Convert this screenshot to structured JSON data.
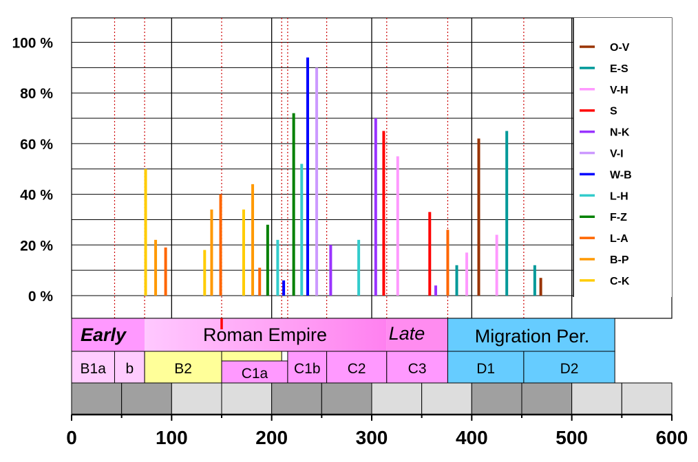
{
  "chart_data": {
    "type": "bar",
    "x_axis": {
      "min": 0,
      "max": 600,
      "ticks": [
        0,
        100,
        200,
        300,
        400,
        500,
        600
      ]
    },
    "y_axis": {
      "min": 0,
      "max": 100,
      "tick_labels": [
        "0 %",
        "20 %",
        "40  %",
        "60 %",
        "80 %",
        "100 %"
      ],
      "tick_values": [
        0,
        20,
        40,
        60,
        80,
        100
      ]
    },
    "grid": true,
    "legend_position": "right",
    "series": [
      {
        "name": "O-V",
        "color": "#993300",
        "points": [
          [
            407,
            62
          ],
          [
            469,
            7
          ]
        ]
      },
      {
        "name": "E-S",
        "color": "#009999",
        "points": [
          [
            385,
            12
          ],
          [
            435,
            65
          ],
          [
            463,
            12
          ]
        ]
      },
      {
        "name": "V-H",
        "color": "#ff99ff",
        "points": [
          [
            326,
            55
          ],
          [
            395,
            17
          ],
          [
            425,
            24
          ]
        ]
      },
      {
        "name": "S",
        "color": "#ff0000",
        "points": [
          [
            312,
            65
          ],
          [
            358,
            33
          ]
        ]
      },
      {
        "name": "N-K",
        "color": "#9933ff",
        "points": [
          [
            259,
            20
          ],
          [
            304,
            70
          ],
          [
            364,
            4
          ]
        ]
      },
      {
        "name": "V-I",
        "color": "#cc99ff",
        "points": [
          [
            245,
            90
          ]
        ]
      },
      {
        "name": "W-B",
        "color": "#0000ff",
        "points": [
          [
            212,
            6
          ],
          [
            236,
            94
          ]
        ]
      },
      {
        "name": "L-H",
        "color": "#33cccc",
        "points": [
          [
            206,
            22
          ],
          [
            230,
            52
          ],
          [
            287,
            22
          ]
        ]
      },
      {
        "name": "F-Z",
        "color": "#008000",
        "points": [
          [
            196,
            28
          ],
          [
            222,
            72
          ]
        ]
      },
      {
        "name": "L-A",
        "color": "#ff6600",
        "points": [
          [
            94,
            19
          ],
          [
            149,
            40
          ],
          [
            188,
            11
          ],
          [
            376,
            26
          ]
        ]
      },
      {
        "name": "B-P",
        "color": "#ff9900",
        "points": [
          [
            84,
            22
          ],
          [
            140,
            34
          ],
          [
            181,
            44
          ]
        ]
      },
      {
        "name": "C-K",
        "color": "#ffcc00",
        "points": [
          [
            74,
            50
          ],
          [
            133,
            18
          ],
          [
            172,
            34
          ]
        ]
      }
    ],
    "period_lines": [
      43,
      73,
      150,
      210,
      216,
      255,
      315,
      376,
      452
    ],
    "periods": [
      {
        "label": "Early",
        "start": 0,
        "end": 73,
        "color": "#ff99ff",
        "italic": true
      },
      {
        "label": "Roman Empire",
        "start": 73,
        "end": 376,
        "color": "#ffb3ff",
        "italic": false
      },
      {
        "label": "Late",
        "start": 315,
        "end": 376,
        "color": "#ff99ff",
        "italic": true
      },
      {
        "label": "Migration Per.",
        "start": 376,
        "end": 543,
        "color": "#66ccff",
        "italic": false
      }
    ],
    "phases": [
      {
        "label": "B1a",
        "start": 0,
        "end": 43,
        "color": "#ffccff"
      },
      {
        "label": "b",
        "start": 43,
        "end": 73,
        "color": "#ffccff"
      },
      {
        "label": "B2",
        "start": 73,
        "end": 150,
        "color": "#ffff99"
      },
      {
        "label": "C1a",
        "start": 150,
        "end": 216,
        "color": "#ff99ff"
      },
      {
        "label": "C1b",
        "start": 216,
        "end": 255,
        "color": "#ff99ff"
      },
      {
        "label": "C2",
        "start": 255,
        "end": 315,
        "color": "#ff99ff"
      },
      {
        "label": "C3",
        "start": 315,
        "end": 376,
        "color": "#ff99ff"
      },
      {
        "label": "D1",
        "start": 376,
        "end": 452,
        "color": "#66ccff"
      },
      {
        "label": "D2",
        "start": 452,
        "end": 543,
        "color": "#66ccff"
      }
    ],
    "scale_bar": [
      "#a0a0a0",
      "#a0a0a0",
      "#dddddd",
      "#dddddd",
      "#a0a0a0",
      "#a0a0a0",
      "#dddddd",
      "#dddddd",
      "#a0a0a0",
      "#a0a0a0",
      "#dddddd",
      "#dddddd"
    ]
  }
}
